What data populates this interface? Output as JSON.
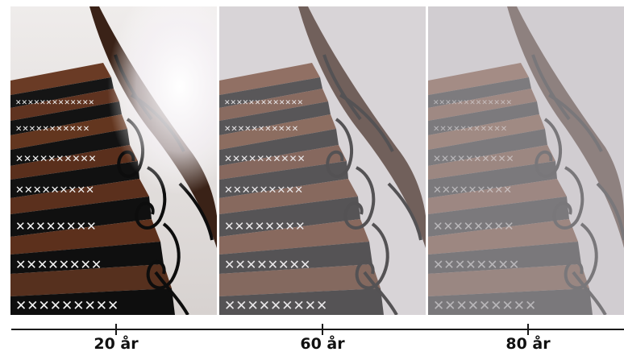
{
  "image": {
    "subject": "spiral staircase with wrought-iron railing and tiled step risers",
    "panels": [
      {
        "id": "panel-20",
        "age_label": "20 år",
        "haze": 0.0
      },
      {
        "id": "panel-60",
        "age_label": "60 år",
        "haze": 0.35
      },
      {
        "id": "panel-80",
        "age_label": "80 år",
        "haze": 0.55
      }
    ],
    "colors": {
      "wood": "#5a2f1c",
      "riser": "#141414",
      "wall": "#eae7e8",
      "iron": "#0d0d0d",
      "tile_mark": "#f2f2f2"
    }
  },
  "timeline": {
    "labels": [
      "20 år",
      "60 år",
      "80 år"
    ]
  }
}
